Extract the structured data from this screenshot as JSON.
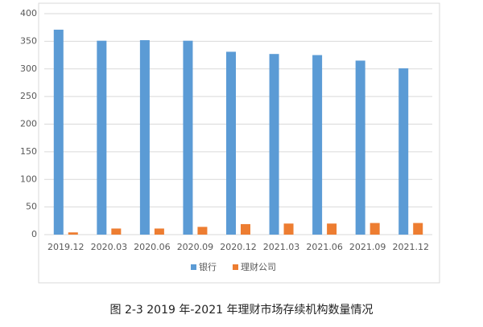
{
  "chart_data": {
    "type": "bar",
    "title": "图 2-3 2019 年-2021 年理财市场存续机构数量情况",
    "categories": [
      "2019.12",
      "2020.03",
      "2020.06",
      "2020.09",
      "2020.12",
      "2021.03",
      "2021.06",
      "2021.09",
      "2021.12"
    ],
    "series": [
      {
        "name": "银行",
        "color": "#5b9bd5",
        "values": [
          371,
          351,
          352,
          351,
          331,
          327,
          325,
          315,
          301
        ]
      },
      {
        "name": "理财公司",
        "color": "#ed7d31",
        "values": [
          4,
          11,
          11,
          14,
          19,
          20,
          20,
          21,
          21
        ]
      }
    ],
    "ylim": [
      0,
      400
    ],
    "yticks": [
      0,
      50,
      100,
      150,
      200,
      250,
      300,
      350,
      400
    ],
    "grid": true,
    "legend": "bottom"
  }
}
